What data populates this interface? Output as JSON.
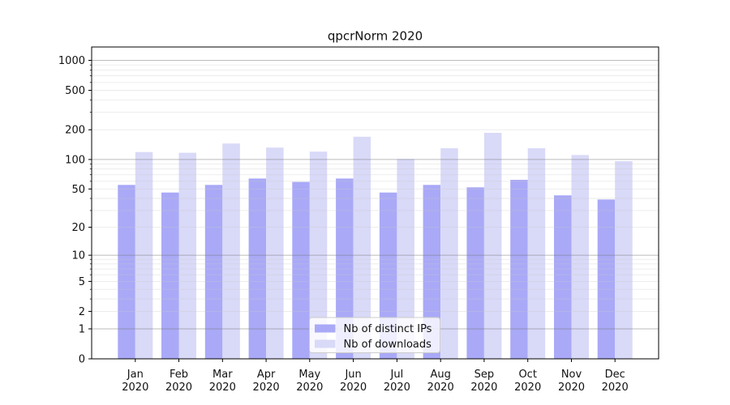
{
  "figure_title": "qpcrNorm 2020",
  "chart_data": {
    "type": "bar",
    "title": "qpcrNorm 2020",
    "categories": [
      "Jan",
      "Feb",
      "Mar",
      "Apr",
      "May",
      "Jun",
      "Jul",
      "Aug",
      "Sep",
      "Oct",
      "Nov",
      "Dec"
    ],
    "year_label": "2020",
    "series": [
      {
        "name": "Nb of distinct IPs",
        "color": "#a9a9f7",
        "values": [
          55,
          46,
          55,
          64,
          59,
          64,
          46,
          55,
          52,
          62,
          43,
          39
        ]
      },
      {
        "name": "Nb of downloads",
        "color": "#d9d9f8",
        "values": [
          119,
          117,
          145,
          132,
          120,
          170,
          101,
          130,
          186,
          130,
          111,
          96
        ]
      }
    ],
    "y_scale": "log1p",
    "y_ticks": [
      0,
      1,
      2,
      5,
      10,
      20,
      50,
      100,
      200,
      500,
      1000
    ],
    "ylim": [
      0,
      1370
    ],
    "grid": true,
    "legend": {
      "position": "inside-bottom-center",
      "frame_alpha": 0.8
    },
    "colors": {
      "spine": "#000000",
      "major_grid": "#787878",
      "minor_grid": "#c8c8c8",
      "legend_border": "#cccccc",
      "background": "#ffffff"
    }
  }
}
